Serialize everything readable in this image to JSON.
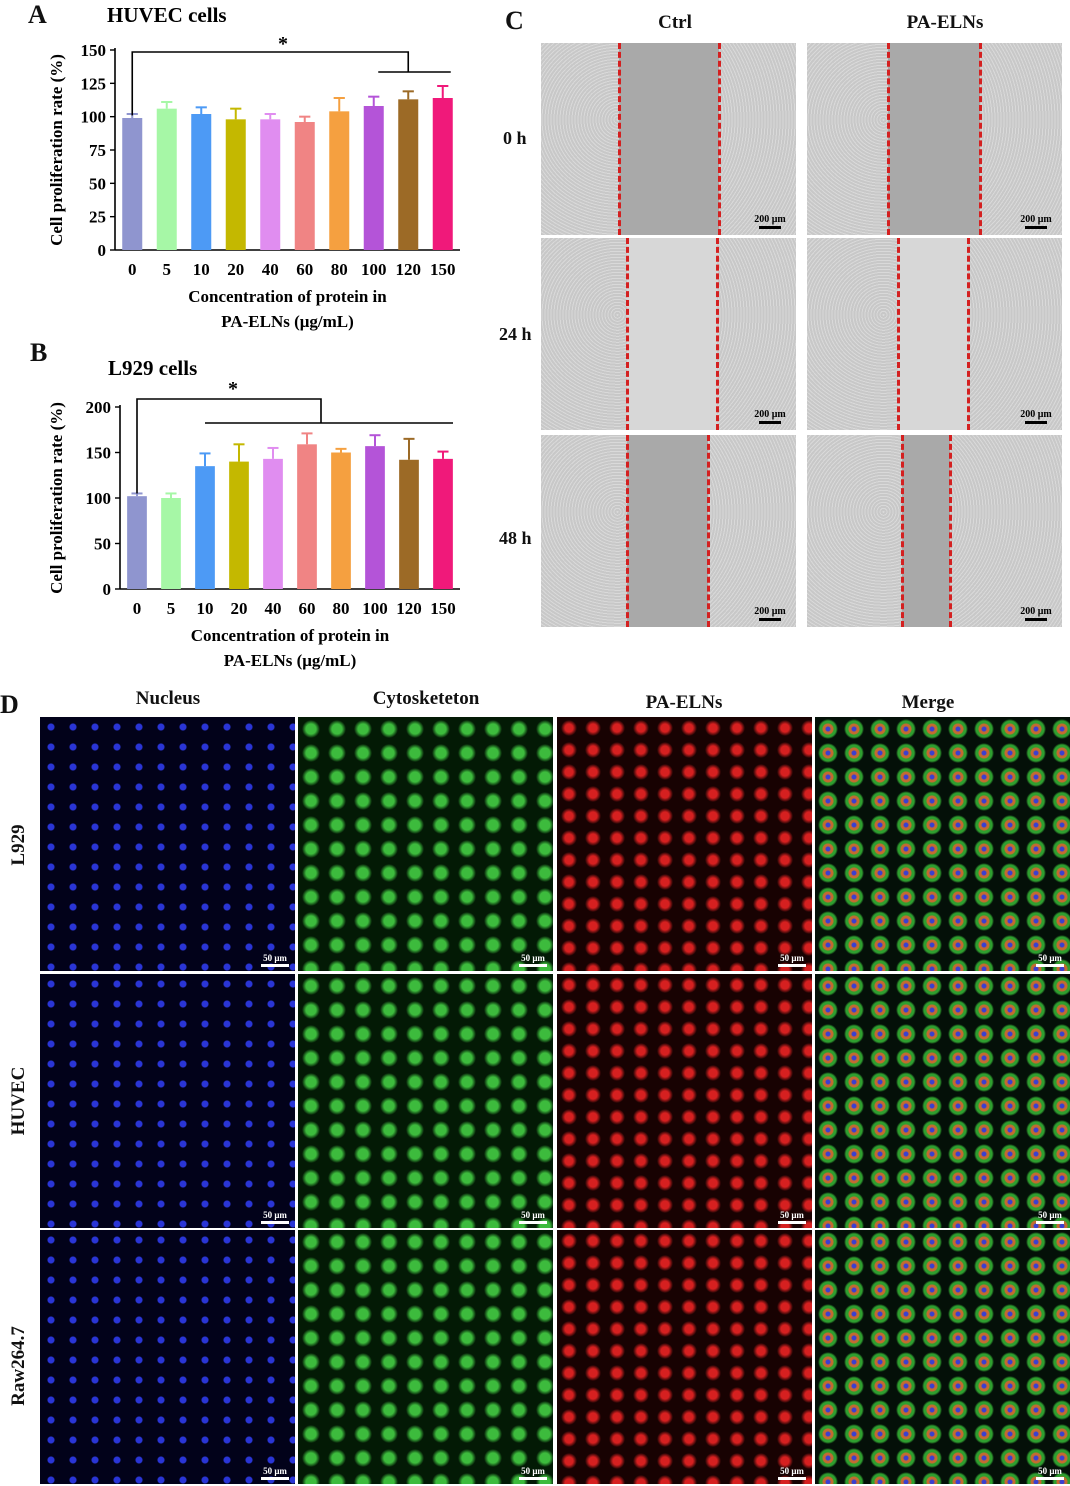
{
  "panels": {
    "A": {
      "letter": "A",
      "title": "HUVEC cells"
    },
    "B": {
      "letter": "B",
      "title": "L929 cells"
    },
    "C": {
      "letter": "C"
    },
    "D": {
      "letter": "D"
    }
  },
  "chart_data": [
    {
      "type": "bar",
      "title": "HUVEC cells",
      "categories": [
        "0",
        "5",
        "10",
        "20",
        "40",
        "60",
        "80",
        "100",
        "120",
        "150"
      ],
      "values": [
        99,
        106,
        102,
        98,
        98,
        96,
        104,
        108,
        113,
        114
      ],
      "errors": [
        3,
        5,
        5,
        8,
        4,
        4,
        10,
        7,
        6,
        9
      ],
      "colors": [
        "#8f95cf",
        "#a6f7a6",
        "#4d9af5",
        "#c4b800",
        "#e08df0",
        "#f08484",
        "#f5a040",
        "#b454d8",
        "#9c6a26",
        "#f0197a"
      ],
      "xlabel_line1": "Concentration of protein in",
      "xlabel_line2": "PA-ELNs (μg/mL)",
      "ylabel": "Cell proliferation rate (%)",
      "yticks": [
        "0",
        "25",
        "50",
        "75",
        "100",
        "125",
        "150"
      ],
      "ylim": [
        0,
        150
      ],
      "significance": "*"
    },
    {
      "type": "bar",
      "title": "L929 cells",
      "categories": [
        "0",
        "5",
        "10",
        "20",
        "40",
        "60",
        "80",
        "100",
        "120",
        "150"
      ],
      "values": [
        102,
        100,
        135,
        140,
        143,
        159,
        150,
        157,
        142,
        143
      ],
      "errors": [
        3,
        5,
        14,
        19,
        12,
        12,
        4,
        12,
        23,
        8
      ],
      "colors": [
        "#8f95cf",
        "#a6f7a6",
        "#4d9af5",
        "#c4b800",
        "#e08df0",
        "#f08484",
        "#f5a040",
        "#b454d8",
        "#9c6a26",
        "#f0197a"
      ],
      "xlabel_line1": "Concentration of protein in",
      "xlabel_line2": "PA-ELNs (μg/mL)",
      "ylabel": "Cell proliferation rate (%)",
      "yticks": [
        "0",
        "50",
        "100",
        "150",
        "200"
      ],
      "ylim": [
        0,
        200
      ],
      "significance": "*"
    }
  ],
  "wound": {
    "columns": [
      "Ctrl",
      "PA-ELNs"
    ],
    "rows": [
      "0 h",
      "24 h",
      "48 h"
    ],
    "scale_label": "200 μm",
    "line_color": "#d42020"
  },
  "fluorescence": {
    "columns": [
      "Nucleus",
      "Cytosketeton",
      "PA-ELNs",
      "Merge"
    ],
    "rows": [
      "L929",
      "HUVEC",
      "Raw264.7"
    ],
    "scale_label": "50 μm"
  }
}
